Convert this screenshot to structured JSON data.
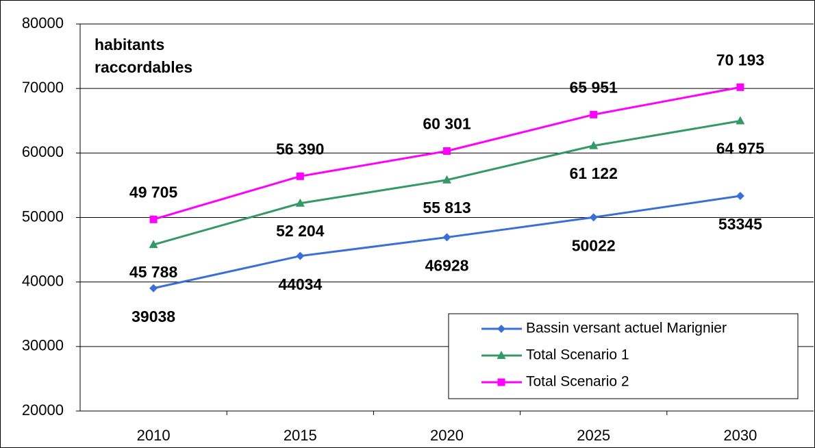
{
  "chart_data": {
    "type": "line",
    "annotation": [
      "habitants",
      "raccordables"
    ],
    "categories": [
      "2010",
      "2015",
      "2020",
      "2025",
      "2030"
    ],
    "series": [
      {
        "name": "Bassin versant actuel Marignier",
        "color": "#3a6fd8",
        "marker": "diamond",
        "values": [
          39038,
          44034,
          46928,
          50022,
          53345
        ]
      },
      {
        "name": "Total Scenario 1",
        "color": "#339966",
        "marker": "triangle",
        "values": [
          45788,
          52204,
          55813,
          61122,
          64975
        ],
        "value_labels": [
          "45 788",
          "52 204",
          "55 813",
          "61 122",
          "64 975"
        ]
      },
      {
        "name": "Total Scenario 2",
        "color": "#ff00ff",
        "marker": "square",
        "values": [
          49705,
          56390,
          60301,
          65951,
          70193
        ],
        "value_labels": [
          "49 705",
          "56 390",
          "60 301",
          "65 951",
          "70 193"
        ]
      }
    ],
    "ylim": [
      20000,
      80000
    ],
    "yticks": [
      20000,
      30000,
      40000,
      50000,
      60000,
      70000,
      80000
    ],
    "grid": true,
    "legend": "lower right"
  }
}
